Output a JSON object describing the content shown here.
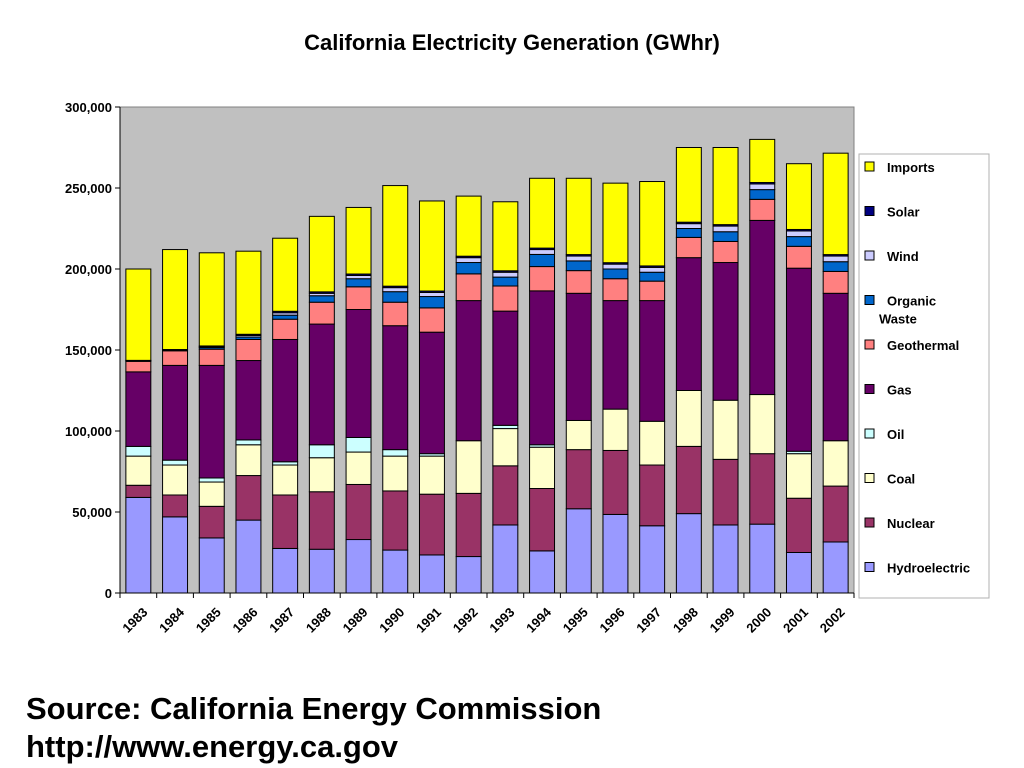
{
  "chart_data": {
    "type": "bar",
    "stacked": true,
    "title": "California Electricity Generation (GWhr)",
    "xlabel": "",
    "ylabel": "",
    "ylim": [
      0,
      300000
    ],
    "y_ticks": [
      0,
      50000,
      100000,
      150000,
      200000,
      250000,
      300000
    ],
    "y_tick_labels": [
      "0",
      "50,000",
      "100,000",
      "150,000",
      "200,000",
      "250,000",
      "300,000"
    ],
    "categories": [
      "1983",
      "1984",
      "1985",
      "1986",
      "1987",
      "1988",
      "1989",
      "1990",
      "1991",
      "1992",
      "1993",
      "1994",
      "1995",
      "1996",
      "1997",
      "1998",
      "1999",
      "2000",
      "2001",
      "2002"
    ],
    "legend_position": "right",
    "series": [
      {
        "name": "Hydroelectric",
        "color": "#9999ff",
        "values": [
          59000,
          47000,
          34000,
          45000,
          27500,
          27000,
          33000,
          26500,
          23500,
          22500,
          42000,
          26000,
          52000,
          48500,
          41500,
          49000,
          42000,
          42500,
          25000,
          31500
        ]
      },
      {
        "name": "Nuclear",
        "color": "#993366",
        "values": [
          7500,
          13500,
          19500,
          27500,
          33000,
          35500,
          34000,
          36500,
          37500,
          39000,
          36500,
          38500,
          36500,
          39500,
          37500,
          41500,
          40500,
          43500,
          33500,
          34500
        ]
      },
      {
        "name": "Coal",
        "color": "#ffffcc",
        "values": [
          18000,
          18500,
          15000,
          19000,
          18500,
          21000,
          20000,
          21500,
          23500,
          32500,
          23000,
          25500,
          18000,
          25500,
          27000,
          34500,
          36500,
          36500,
          27500,
          28000
        ]
      },
      {
        "name": "Oil",
        "color": "#ccffff",
        "values": [
          6000,
          3000,
          2500,
          3000,
          2000,
          8000,
          9000,
          4000,
          1500,
          0,
          2000,
          1500,
          0,
          0,
          0,
          0,
          0,
          0,
          1500,
          0
        ]
      },
      {
        "name": "Gas",
        "color": "#660066",
        "values": [
          46000,
          58500,
          69500,
          49000,
          75500,
          74500,
          79000,
          76500,
          75000,
          86500,
          70500,
          95000,
          78500,
          67000,
          74500,
          82000,
          85000,
          107500,
          113000,
          91000
        ]
      },
      {
        "name": "Geothermal",
        "color": "#ff8080",
        "values": [
          6500,
          9000,
          10000,
          13000,
          12500,
          13500,
          14000,
          14500,
          15000,
          16500,
          15500,
          15000,
          14000,
          13500,
          12000,
          12500,
          13000,
          13000,
          13500,
          13500
        ]
      },
      {
        "name": "Organic Waste",
        "color": "#0066cc",
        "values": [
          500,
          500,
          1000,
          1500,
          2500,
          4000,
          5000,
          6500,
          7000,
          7000,
          5500,
          7500,
          6000,
          6000,
          5500,
          5500,
          6000,
          6000,
          6000,
          6000
        ]
      },
      {
        "name": "Wind",
        "color": "#ccccff",
        "values": [
          0,
          0,
          500,
          1000,
          1500,
          1500,
          2000,
          2500,
          2500,
          3000,
          3000,
          3000,
          3000,
          3000,
          3000,
          3000,
          3500,
          3500,
          3500,
          3500
        ]
      },
      {
        "name": "Solar",
        "color": "#000080",
        "values": [
          100,
          300,
          500,
          700,
          900,
          900,
          900,
          900,
          900,
          900,
          900,
          900,
          900,
          900,
          900,
          900,
          900,
          900,
          900,
          900
        ]
      },
      {
        "name": "Imports",
        "color": "#ffff00",
        "values": [
          56400,
          61700,
          57500,
          51300,
          45100,
          46600,
          41100,
          62100,
          55600,
          37100,
          42600,
          43100,
          47100,
          49100,
          52100,
          46100,
          47600,
          26600,
          40600,
          62600
        ]
      }
    ],
    "legend": [
      "Imports",
      "Solar",
      "Wind",
      "Organic Waste",
      "Geothermal",
      "Gas",
      "Oil",
      "Coal",
      "Nuclear",
      "Hydroelectric"
    ]
  },
  "source": {
    "line1": "Source:  California Energy Commission",
    "line2": "http://www.energy.ca.gov"
  }
}
